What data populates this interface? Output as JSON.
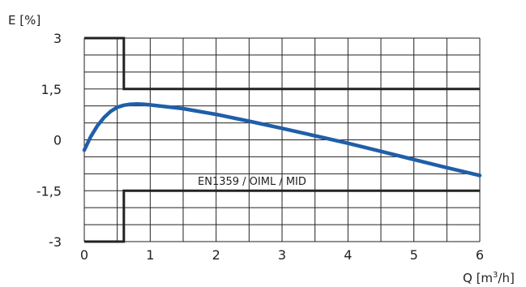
{
  "chart_data": {
    "type": "line",
    "ylabel": "E [%]",
    "xlabel_main": "Q [m",
    "xlabel_sup": "3",
    "xlabel_tail": "/h]",
    "annotation": "EN1359 / OIML / MID",
    "xlim": [
      0,
      6
    ],
    "ylim": [
      -3,
      3
    ],
    "x_ticks": [
      {
        "value": 0,
        "label": "0"
      },
      {
        "value": 1,
        "label": "1"
      },
      {
        "value": 2,
        "label": "2"
      },
      {
        "value": 3,
        "label": "3"
      },
      {
        "value": 4,
        "label": "4"
      },
      {
        "value": 5,
        "label": "5"
      },
      {
        "value": 6,
        "label": "6"
      }
    ],
    "y_ticks": [
      {
        "value": 3,
        "label": "3"
      },
      {
        "value": 1.5,
        "label": "1,5"
      },
      {
        "value": 0,
        "label": "0"
      },
      {
        "value": -1.5,
        "label": "-1,5"
      },
      {
        "value": -3,
        "label": "-3"
      }
    ],
    "grid": true,
    "series": [
      {
        "role": "error-curve",
        "color": "#1f5fa8",
        "x": [
          0,
          0.1,
          0.2,
          0.3,
          0.4,
          0.5,
          0.6,
          0.7,
          0.8,
          0.9,
          1.0,
          1.5,
          2.0,
          2.5,
          3.0,
          3.5,
          4.0,
          4.5,
          5.0,
          5.5,
          6.0
        ],
        "y": [
          -0.3,
          0.1,
          0.42,
          0.66,
          0.84,
          0.96,
          1.02,
          1.05,
          1.06,
          1.05,
          1.03,
          0.92,
          0.75,
          0.55,
          0.34,
          0.12,
          -0.1,
          -0.34,
          -0.58,
          -0.82,
          -1.05
        ]
      },
      {
        "role": "upper-limit",
        "color": "#222222",
        "x": [
          0,
          0.6,
          0.6,
          6.0
        ],
        "y": [
          3,
          3,
          1.5,
          1.5
        ]
      },
      {
        "role": "lower-limit",
        "color": "#222222",
        "x": [
          0,
          0.6,
          0.6,
          6.0
        ],
        "y": [
          -3,
          -3,
          -1.5,
          -1.5
        ]
      }
    ]
  }
}
